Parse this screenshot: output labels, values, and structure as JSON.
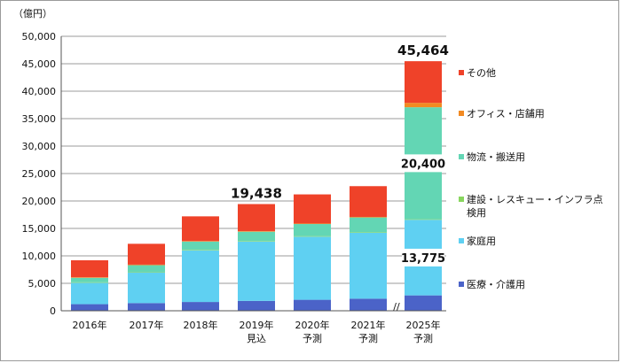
{
  "chart_data": {
    "type": "bar",
    "stacked": true,
    "title": "",
    "xlabel": "",
    "ylabel": "",
    "unit": "（億円）",
    "ylim": [
      0,
      50000
    ],
    "ticks": [
      0,
      5000,
      10000,
      15000,
      20000,
      25000,
      30000,
      35000,
      40000,
      45000,
      50000
    ],
    "tick_labels": [
      "0",
      "5,000",
      "10,000",
      "15,000",
      "20,000",
      "25,000",
      "30,000",
      "35,000",
      "40,000",
      "45,000",
      "50,000"
    ],
    "categories": [
      [
        "2016年"
      ],
      [
        "2017年"
      ],
      [
        "2018年"
      ],
      [
        "2019年",
        "見込"
      ],
      [
        "2020年",
        "予測"
      ],
      [
        "2021年",
        "予測"
      ],
      [
        "2025年",
        "予測"
      ]
    ],
    "series": [
      {
        "name": "医療・介護用",
        "color": "#4b63c8",
        "values": [
          1200,
          1400,
          1600,
          1800,
          2000,
          2200,
          2800
        ]
      },
      {
        "name": "家庭用",
        "color": "#5fd0f2",
        "values": [
          3900,
          5600,
          9400,
          10800,
          11500,
          12000,
          13775
        ]
      },
      {
        "name": "建設・レスキュー・インフラ点検用",
        "color": "#88d65e",
        "values": [
          100,
          100,
          100,
          100,
          100,
          100,
          100
        ]
      },
      {
        "name": "物流・搬送用",
        "color": "#63d6b4",
        "values": [
          800,
          1200,
          1500,
          1700,
          2200,
          2700,
          20400
        ]
      },
      {
        "name": "オフィス・店舗用",
        "color": "#f28a22",
        "values": [
          100,
          100,
          100,
          100,
          100,
          100,
          800
        ]
      },
      {
        "name": "その他",
        "color": "#ef4229",
        "values": [
          3100,
          3800,
          4500,
          4938,
          5300,
          5600,
          7589
        ]
      }
    ],
    "totals": [
      null,
      null,
      null,
      19438,
      null,
      null,
      45464
    ],
    "total_labels": [
      "",
      "",
      "",
      "19,438",
      "",
      "",
      "45,464"
    ],
    "inner_labels": [
      {
        "category_index": 6,
        "series_index": 3,
        "text": "20,400"
      },
      {
        "category_index": 6,
        "series_index": 1,
        "text": "13,775"
      }
    ],
    "legend": {
      "placement": "right",
      "items": [
        {
          "series_index": 5,
          "lines": [
            "その他"
          ]
        },
        {
          "series_index": 4,
          "lines": [
            "オフィス・店舗用"
          ]
        },
        {
          "series_index": 3,
          "lines": [
            "物流・搬送用"
          ]
        },
        {
          "series_index": 2,
          "lines": [
            "建設・レスキュー・インフラ点",
            "検用"
          ]
        },
        {
          "series_index": 1,
          "lines": [
            "家庭用"
          ]
        },
        {
          "series_index": 0,
          "lines": [
            "医療・介護用"
          ]
        }
      ]
    },
    "axis_break": "//",
    "grid": true
  }
}
